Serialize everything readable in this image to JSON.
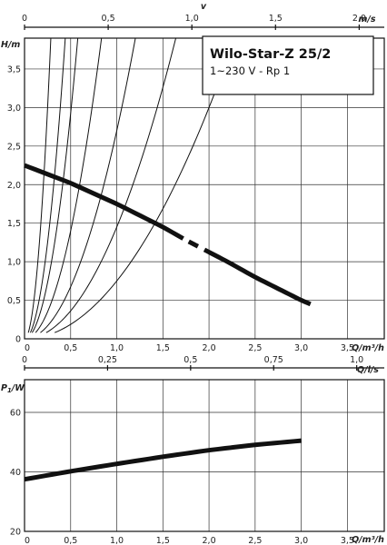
{
  "chart_data": [
    {
      "type": "line",
      "title": "Wilo-Star-Z 25/2",
      "subtitle": "1~230 V - Rp 1",
      "xlabel": "Q/m³/h",
      "ylabel": "H/m",
      "top_axis_label": "v",
      "top_axis_unit": "m/s",
      "xlim": [
        0,
        3.9
      ],
      "ylim": [
        0,
        3.9
      ],
      "top_axis_range": [
        0,
        2.15
      ],
      "x_ticks": [
        "0",
        "0,5",
        "1,0",
        "1,5",
        "2,0",
        "2,5",
        "3,0",
        "3,5"
      ],
      "y_ticks": [
        "0",
        "0,5",
        "1,0",
        "1,5",
        "2,0",
        "2,5",
        "3,0",
        "3,5"
      ],
      "top_ticks": [
        "0",
        "0,5",
        "1,0",
        "1,5",
        "2,0"
      ],
      "top_tick_values": [
        0,
        0.5,
        1.0,
        1.5,
        2.0
      ],
      "grid": true,
      "series": [
        {
          "role": "pump-curve",
          "x": [
            0,
            0.5,
            1.0,
            1.5,
            1.75,
            2.2,
            2.5,
            3.0,
            3.1
          ],
          "y": [
            2.25,
            2.02,
            1.75,
            1.45,
            1.28,
            1.0,
            0.8,
            0.5,
            0.45
          ]
        }
      ],
      "system_curve_coefficients": [
        48,
        20,
        11.7,
        5.6,
        2.7,
        1.45,
        0.75
      ]
    },
    {
      "type": "line",
      "xlabel": "Q/m³/h",
      "ylabel": "P1/W",
      "top_axis_unit": "Q/l/s",
      "xlim": [
        0,
        3.9
      ],
      "ylim": [
        20,
        71
      ],
      "top_axis_range": [
        0,
        1.083
      ],
      "x_ticks": [
        "0",
        "0,5",
        "1,0",
        "1,5",
        "2,0",
        "2,5",
        "3,0",
        "3,5"
      ],
      "y_ticks": [
        "20",
        "40",
        "60"
      ],
      "y_tick_values": [
        20,
        40,
        60
      ],
      "top_ticks": [
        "0",
        "0,25",
        "0,5",
        "0,75",
        "1,0"
      ],
      "top_tick_values": [
        0,
        0.25,
        0.5,
        0.75,
        1.0
      ],
      "grid": true,
      "series": [
        {
          "role": "power-curve",
          "x": [
            0,
            0.5,
            1.0,
            1.5,
            2.0,
            2.5,
            3.0
          ],
          "y": [
            37.5,
            40.2,
            42.7,
            45.1,
            47.3,
            49.1,
            50.5
          ]
        }
      ]
    }
  ]
}
